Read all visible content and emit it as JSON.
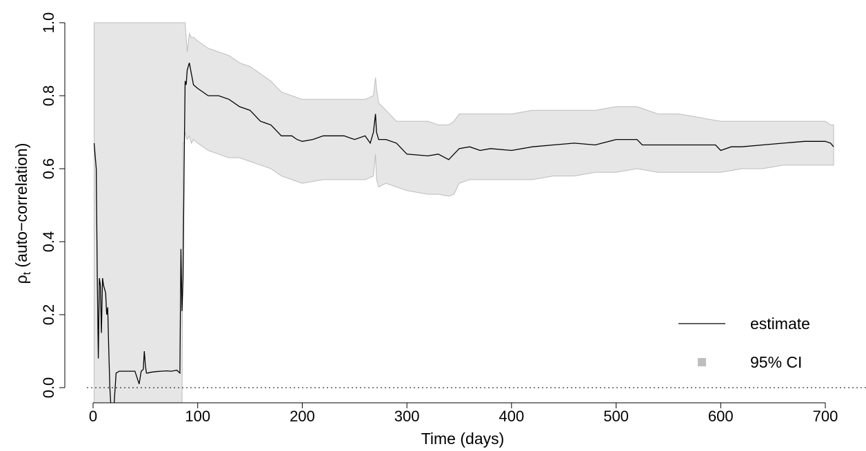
{
  "chart_data": {
    "type": "line",
    "xlabel": "Time (days)",
    "ylabel_main": "ρ",
    "ylabel_sub": "t",
    "ylabel_rest": " (auto−correlation)",
    "xlim": [
      0,
      710
    ],
    "ylim": [
      0,
      1
    ],
    "x_ticks": [
      0,
      100,
      200,
      300,
      400,
      500,
      600,
      700
    ],
    "y_ticks": [
      0.0,
      0.2,
      0.4,
      0.6,
      0.8,
      1.0
    ],
    "y_tick_labels": [
      "0.0",
      "0.2",
      "0.4",
      "0.6",
      "0.8",
      "1.0"
    ],
    "reference_line": 0,
    "legend": {
      "placement": "bottom-right",
      "entries": [
        "estimate",
        "95% CI"
      ]
    },
    "colors": {
      "estimate": "#000000",
      "ci_fill": "#e6e6e6",
      "ci_edge": "#bdbdbd",
      "legend_ci_swatch": "#bebebe"
    },
    "series": [
      {
        "name": "estimate",
        "x": [
          1,
          3,
          4,
          5,
          6,
          7,
          8,
          9,
          10,
          11,
          12,
          13,
          14,
          15,
          16,
          17,
          18,
          20,
          22,
          25,
          30,
          35,
          40,
          44,
          46,
          48,
          49,
          50,
          51,
          52,
          55,
          60,
          65,
          70,
          75,
          80,
          83,
          84,
          85,
          86,
          87,
          88,
          89,
          90,
          92,
          94,
          96,
          100,
          110,
          120,
          130,
          140,
          150,
          160,
          170,
          180,
          190,
          195,
          200,
          210,
          220,
          230,
          240,
          250,
          260,
          265,
          268,
          270,
          271,
          273,
          280,
          290,
          300,
          320,
          330,
          340,
          345,
          350,
          360,
          370,
          380,
          400,
          420,
          440,
          460,
          480,
          500,
          520,
          525,
          530,
          540,
          560,
          580,
          595,
          600,
          610,
          620,
          640,
          660,
          680,
          700,
          705,
          708
        ],
        "y": [
          0.67,
          0.6,
          0.3,
          0.08,
          0.3,
          0.28,
          0.15,
          0.3,
          0.28,
          0.27,
          0.26,
          0.2,
          0.22,
          0.1,
          0.0,
          -0.05,
          -0.08,
          -0.05,
          0.04,
          0.045,
          0.045,
          0.045,
          0.045,
          0.01,
          0.045,
          0.05,
          0.1,
          0.06,
          0.04,
          0.04,
          0.042,
          0.044,
          0.045,
          0.046,
          0.045,
          0.048,
          0.04,
          0.38,
          0.21,
          0.3,
          0.6,
          0.84,
          0.83,
          0.87,
          0.89,
          0.86,
          0.83,
          0.82,
          0.8,
          0.8,
          0.79,
          0.77,
          0.76,
          0.73,
          0.72,
          0.69,
          0.69,
          0.68,
          0.675,
          0.68,
          0.69,
          0.69,
          0.69,
          0.68,
          0.69,
          0.67,
          0.7,
          0.75,
          0.7,
          0.68,
          0.68,
          0.67,
          0.64,
          0.635,
          0.64,
          0.625,
          0.64,
          0.655,
          0.66,
          0.65,
          0.655,
          0.65,
          0.66,
          0.665,
          0.67,
          0.665,
          0.68,
          0.68,
          0.665,
          0.665,
          0.665,
          0.665,
          0.665,
          0.665,
          0.65,
          0.66,
          0.66,
          0.665,
          0.67,
          0.675,
          0.675,
          0.67,
          0.66
        ]
      },
      {
        "name": "95% CI",
        "x": [
          1,
          85,
          86,
          87,
          88,
          89,
          90,
          92,
          94,
          96,
          100,
          110,
          120,
          130,
          140,
          150,
          160,
          170,
          180,
          190,
          200,
          220,
          240,
          260,
          268,
          270,
          271,
          273,
          280,
          290,
          300,
          320,
          330,
          340,
          345,
          350,
          360,
          380,
          400,
          420,
          440,
          460,
          480,
          500,
          520,
          540,
          560,
          580,
          600,
          620,
          640,
          660,
          680,
          700,
          705,
          708
        ],
        "upper": [
          1.0,
          1.0,
          1.0,
          1.0,
          1.0,
          0.96,
          0.92,
          0.97,
          0.96,
          0.96,
          0.95,
          0.93,
          0.92,
          0.91,
          0.89,
          0.88,
          0.86,
          0.84,
          0.81,
          0.8,
          0.79,
          0.79,
          0.79,
          0.79,
          0.8,
          0.85,
          0.82,
          0.78,
          0.76,
          0.73,
          0.73,
          0.73,
          0.72,
          0.72,
          0.73,
          0.75,
          0.75,
          0.75,
          0.75,
          0.76,
          0.76,
          0.76,
          0.76,
          0.77,
          0.77,
          0.75,
          0.75,
          0.74,
          0.73,
          0.73,
          0.73,
          0.73,
          0.73,
          0.73,
          0.72,
          0.72
        ],
        "lower": [
          -0.05,
          -0.05,
          0.67,
          0.67,
          0.7,
          0.69,
          0.68,
          0.69,
          0.67,
          0.68,
          0.67,
          0.65,
          0.64,
          0.63,
          0.63,
          0.62,
          0.61,
          0.6,
          0.58,
          0.57,
          0.56,
          0.57,
          0.57,
          0.57,
          0.58,
          0.64,
          0.57,
          0.55,
          0.56,
          0.55,
          0.54,
          0.53,
          0.53,
          0.525,
          0.53,
          0.56,
          0.57,
          0.57,
          0.57,
          0.57,
          0.58,
          0.58,
          0.59,
          0.59,
          0.6,
          0.59,
          0.59,
          0.59,
          0.59,
          0.6,
          0.6,
          0.61,
          0.61,
          0.61,
          0.61,
          0.61
        ]
      }
    ]
  }
}
